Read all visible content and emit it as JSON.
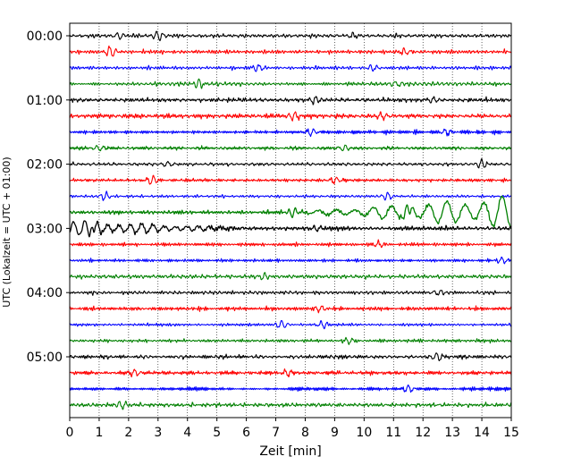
{
  "chart_data": {
    "type": "line",
    "xlabel": "Zeit  [min]",
    "ylabel": "UTC (Lokalzeit = UTC + 01:00)",
    "xlim": [
      0,
      15
    ],
    "x_ticks": [
      "0",
      "1",
      "2",
      "3",
      "4",
      "5",
      "6",
      "7",
      "8",
      "9",
      "10",
      "11",
      "12",
      "13",
      "14",
      "15"
    ],
    "y_ticks": [
      "00:00",
      "01:00",
      "02:00",
      "03:00",
      "04:00",
      "05:00"
    ],
    "traces_per_hour": 4,
    "trace_minutes": 15,
    "color_cycle": [
      "#000000",
      "#ff0000",
      "#0000ff",
      "#008000"
    ],
    "grid": "vertical dotted",
    "traces": [
      {
        "start": "00:00",
        "color": "#000000",
        "amplitude": 0.3,
        "events": [
          {
            "t": 1.7,
            "a": 0.6
          },
          {
            "t": 3.0,
            "a": 0.7
          },
          {
            "t": 9.6,
            "a": 0.5
          }
        ]
      },
      {
        "start": "00:15",
        "color": "#ff0000",
        "amplitude": 0.3,
        "events": [
          {
            "t": 1.4,
            "a": 0.9
          },
          {
            "t": 11.4,
            "a": 0.5
          }
        ]
      },
      {
        "start": "00:30",
        "color": "#0000ff",
        "amplitude": 0.3,
        "events": [
          {
            "t": 6.4,
            "a": 0.6
          },
          {
            "t": 10.3,
            "a": 0.5
          }
        ]
      },
      {
        "start": "00:45",
        "color": "#008000",
        "amplitude": 0.3,
        "events": [
          {
            "t": 4.4,
            "a": 0.7
          },
          {
            "t": 11.1,
            "a": 0.5
          }
        ]
      },
      {
        "start": "01:00",
        "color": "#000000",
        "amplitude": 0.3,
        "events": [
          {
            "t": 8.3,
            "a": 0.6
          },
          {
            "t": 12.3,
            "a": 0.5
          }
        ]
      },
      {
        "start": "01:15",
        "color": "#ff0000",
        "amplitude": 0.3,
        "events": [
          {
            "t": 7.6,
            "a": 0.6
          },
          {
            "t": 10.6,
            "a": 0.5
          }
        ]
      },
      {
        "start": "01:30",
        "color": "#0000ff",
        "amplitude": 0.3,
        "events": [
          {
            "t": 8.2,
            "a": 0.6
          },
          {
            "t": 12.8,
            "a": 0.5
          }
        ]
      },
      {
        "start": "01:45",
        "color": "#008000",
        "amplitude": 0.3,
        "events": [
          {
            "t": 1.0,
            "a": 0.5
          },
          {
            "t": 9.3,
            "a": 0.5
          }
        ]
      },
      {
        "start": "02:00",
        "color": "#000000",
        "amplitude": 0.3,
        "events": [
          {
            "t": 3.3,
            "a": 0.5
          },
          {
            "t": 14.0,
            "a": 0.7
          }
        ]
      },
      {
        "start": "02:15",
        "color": "#ff0000",
        "amplitude": 0.3,
        "events": [
          {
            "t": 2.8,
            "a": 0.8
          },
          {
            "t": 9.0,
            "a": 0.5
          }
        ]
      },
      {
        "start": "02:30",
        "color": "#0000ff",
        "amplitude": 0.3,
        "events": [
          {
            "t": 1.2,
            "a": 0.6
          },
          {
            "t": 10.8,
            "a": 0.6
          }
        ]
      },
      {
        "start": "02:45",
        "color": "#008000",
        "amplitude": 0.3,
        "events": [
          {
            "t": 7.6,
            "a": 0.8
          },
          {
            "t": 11.5,
            "a": 1.0
          }
        ],
        "ramp": {
          "from": 6.8,
          "to": 15.0,
          "max": 2.7
        }
      },
      {
        "start": "03:00",
        "color": "#000000",
        "amplitude": 0.35,
        "events": [
          {
            "t": 0.8,
            "a": 1.0
          },
          {
            "t": 8.4,
            "a": 0.5
          }
        ],
        "ramp": {
          "from": 0.0,
          "to": 6.5,
          "max": 1.2,
          "decay": true
        }
      },
      {
        "start": "03:15",
        "color": "#ff0000",
        "amplitude": 0.3,
        "events": [
          {
            "t": 10.5,
            "a": 0.5
          }
        ]
      },
      {
        "start": "03:30",
        "color": "#0000ff",
        "amplitude": 0.3,
        "events": [
          {
            "t": 14.7,
            "a": 0.5
          }
        ]
      },
      {
        "start": "03:45",
        "color": "#008000",
        "amplitude": 0.3,
        "events": [
          {
            "t": 6.6,
            "a": 0.5
          }
        ]
      },
      {
        "start": "04:00",
        "color": "#000000",
        "amplitude": 0.3,
        "events": [
          {
            "t": 12.5,
            "a": 0.5
          }
        ]
      },
      {
        "start": "04:15",
        "color": "#ff0000",
        "amplitude": 0.3,
        "events": [
          {
            "t": 8.5,
            "a": 0.5
          }
        ]
      },
      {
        "start": "04:30",
        "color": "#0000ff",
        "amplitude": 0.3,
        "events": [
          {
            "t": 7.2,
            "a": 0.7
          },
          {
            "t": 8.6,
            "a": 0.6
          }
        ]
      },
      {
        "start": "04:45",
        "color": "#008000",
        "amplitude": 0.3,
        "events": [
          {
            "t": 9.5,
            "a": 0.5
          }
        ]
      },
      {
        "start": "05:00",
        "color": "#000000",
        "amplitude": 0.3,
        "events": [
          {
            "t": 12.5,
            "a": 0.7
          }
        ]
      },
      {
        "start": "05:15",
        "color": "#ff0000",
        "amplitude": 0.3,
        "events": [
          {
            "t": 2.2,
            "a": 0.5
          },
          {
            "t": 7.4,
            "a": 0.6
          }
        ]
      },
      {
        "start": "05:30",
        "color": "#0000ff",
        "amplitude": 0.3,
        "events": [
          {
            "t": 11.5,
            "a": 0.6
          }
        ]
      },
      {
        "start": "05:45",
        "color": "#008000",
        "amplitude": 0.3,
        "events": [
          {
            "t": 1.8,
            "a": 0.6
          }
        ]
      }
    ]
  }
}
